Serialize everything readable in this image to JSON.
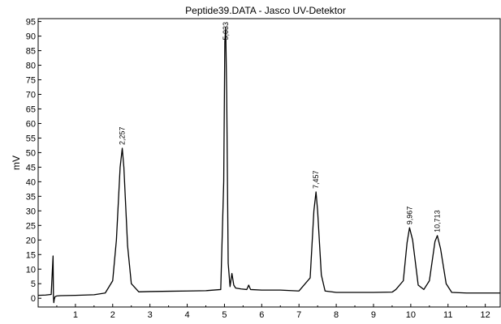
{
  "chart_data": {
    "type": "line",
    "title": "Peptide39.DATA - Jasco UV-Detektor",
    "xlabel": "",
    "ylabel": "mV",
    "xlim": [
      0,
      12.4
    ],
    "ylim": [
      -3,
      96
    ],
    "x_ticks": [
      1,
      2,
      3,
      4,
      5,
      6,
      7,
      8,
      9,
      10,
      11,
      12
    ],
    "y_ticks": [
      0,
      5,
      10,
      15,
      20,
      25,
      30,
      35,
      40,
      45,
      50,
      55,
      60,
      65,
      70,
      75,
      80,
      85,
      90,
      95
    ],
    "grid": false,
    "line_color": "#000000",
    "peaks": [
      {
        "label": "2,257",
        "rt": 2.257,
        "height": 51.5
      },
      {
        "label": "5,033",
        "rt": 5.033,
        "height": 93.0
      },
      {
        "label": "7,457",
        "rt": 7.457,
        "height": 36.5
      },
      {
        "label": "9,967",
        "rt": 9.967,
        "height": 24.2
      },
      {
        "label": "10,713",
        "rt": 10.713,
        "height": 21.5
      }
    ],
    "series": [
      {
        "x": [
          0.0,
          0.2,
          0.35,
          0.4,
          0.41,
          0.42,
          0.43,
          0.45,
          0.5,
          0.6,
          1.0,
          1.5,
          1.8,
          2.0,
          2.1,
          2.2,
          2.257,
          2.3,
          2.4,
          2.5,
          2.7,
          3.0,
          3.5,
          4.0,
          4.5,
          4.9,
          4.98,
          5.01,
          5.033,
          5.06,
          5.1,
          5.15,
          5.2,
          5.25,
          5.3,
          5.45,
          5.6,
          5.65,
          5.7,
          6.0,
          6.5,
          7.0,
          7.3,
          7.4,
          7.457,
          7.5,
          7.6,
          7.7,
          8.0,
          8.5,
          9.0,
          9.5,
          9.6,
          9.8,
          9.9,
          9.967,
          10.05,
          10.2,
          10.35,
          10.5,
          10.65,
          10.713,
          10.8,
          10.95,
          11.1,
          11.5,
          12.0,
          12.4
        ],
        "y": [
          1.0,
          1.1,
          1.3,
          14.5,
          0.5,
          -1.5,
          -0.5,
          0.5,
          0.8,
          0.9,
          1.0,
          1.2,
          1.8,
          6.0,
          20.0,
          45.0,
          51.5,
          45.0,
          18.0,
          5.0,
          2.2,
          2.3,
          2.4,
          2.5,
          2.6,
          3.0,
          40.0,
          88.0,
          93.0,
          70.0,
          12.0,
          4.0,
          8.5,
          4.5,
          3.5,
          3.2,
          3.0,
          4.5,
          3.0,
          2.8,
          2.8,
          2.5,
          7.0,
          30.0,
          36.5,
          30.0,
          8.0,
          2.5,
          2.0,
          2.0,
          2.0,
          2.1,
          3.0,
          6.0,
          19.0,
          24.2,
          20.0,
          4.5,
          3.0,
          6.0,
          19.5,
          21.5,
          17.0,
          5.0,
          2.0,
          1.8,
          1.8,
          1.8
        ]
      }
    ]
  }
}
